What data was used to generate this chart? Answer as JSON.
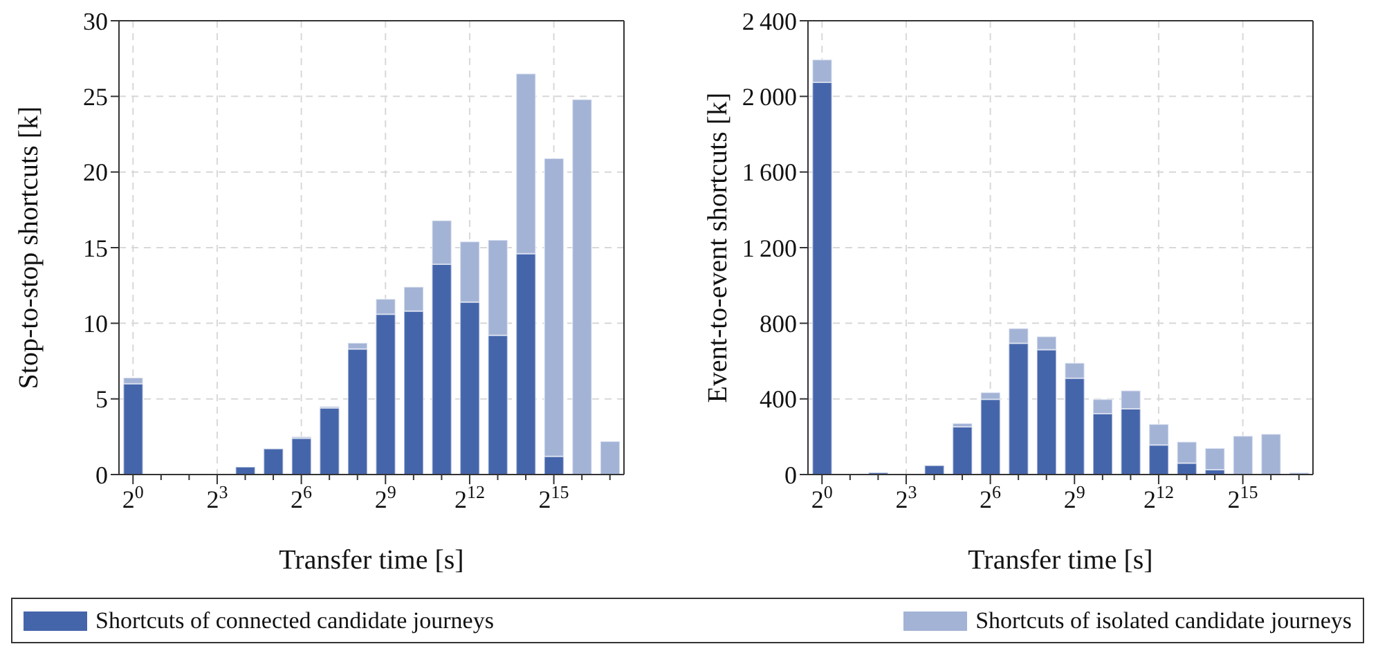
{
  "chart_data": [
    {
      "type": "bar",
      "stacked": true,
      "xlabel": "Transfer time [s]",
      "ylabel": "Stop-to-stop shortcuts [k]",
      "categories": [
        "2$^{0}$",
        null,
        null,
        "2$^{3}$",
        null,
        null,
        "2$^{6}$",
        null,
        null,
        "2$^{9}$",
        null,
        null,
        "2$^{12}$",
        null,
        null,
        "2$^{15}$",
        null,
        null
      ],
      "ylim": [
        0,
        30
      ],
      "yticks": [
        0,
        5,
        10,
        15,
        20,
        25,
        30
      ],
      "grid": true,
      "legend": "bottom",
      "series": [
        {
          "name": "Shortcuts of connected candidate journeys",
          "color": "#4565ab",
          "values": [
            6.0,
            0,
            0,
            0,
            0.5,
            1.7,
            2.4,
            4.4,
            8.3,
            10.6,
            10.8,
            13.9,
            11.4,
            9.2,
            14.6,
            1.2,
            0,
            0
          ]
        },
        {
          "name": "Shortcuts of isolated candidate journeys",
          "color": "#a3b3d6",
          "values": [
            0.4,
            0,
            0,
            0,
            0,
            0,
            0.1,
            0.1,
            0.4,
            1.0,
            1.6,
            2.9,
            4.0,
            6.3,
            11.9,
            19.7,
            24.8,
            2.2
          ]
        }
      ]
    },
    {
      "type": "bar",
      "stacked": true,
      "xlabel": "Transfer time [s]",
      "ylabel": "Event-to-event shortcuts [k]",
      "categories": [
        "2$^{0}$",
        null,
        null,
        "2$^{3}$",
        null,
        null,
        "2$^{6}$",
        null,
        null,
        "2$^{9}$",
        null,
        null,
        "2$^{12}$",
        null,
        null,
        "2$^{15}$",
        null,
        null
      ],
      "ylim": [
        0,
        2400
      ],
      "yticks": [
        0,
        400,
        800,
        {
          "value": 1200,
          "label": "1 200"
        },
        {
          "value": 1600,
          "label": "1 600"
        },
        {
          "value": 2000,
          "label": "2 000"
        },
        {
          "value": 2400,
          "label": "2 400"
        }
      ],
      "grid": true,
      "series": [
        {
          "color": "#4565ab",
          "values": [
            2074,
            0,
            10,
            0,
            48,
            252,
            398,
            694,
            660,
            509,
            322,
            348,
            156,
            60,
            26,
            0,
            0,
            0
          ]
        },
        {
          "color": "#a3b3d6",
          "values": [
            120,
            0,
            0,
            0,
            0,
            19,
            36,
            79,
            70,
            81,
            76,
            96,
            110,
            113,
            113,
            204,
            214,
            10
          ]
        }
      ]
    }
  ]
}
